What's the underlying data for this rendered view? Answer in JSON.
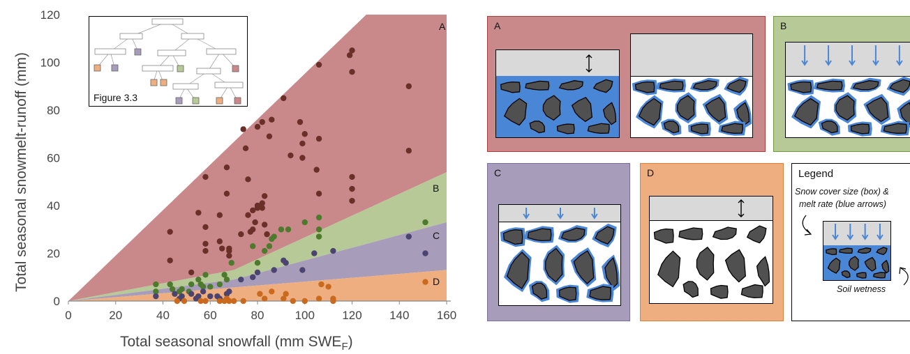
{
  "chart_data": {
    "type": "scatter",
    "xlabel": "Total seasonal snowfall (mm SWE",
    "xlabel_sub": "F",
    "ylabel": "Total seasonal snowmelt-runoff (mm)",
    "xlim": [
      0,
      160
    ],
    "ylim": [
      0,
      120
    ],
    "x_ticks": [
      0,
      20,
      40,
      60,
      80,
      100,
      120,
      140,
      160
    ],
    "y_ticks": [
      0,
      20,
      40,
      60,
      80,
      100,
      120
    ],
    "regions": [
      {
        "name": "A",
        "color": "#c9898a",
        "upper": [
          [
            0,
            0
          ],
          [
            126,
            120
          ],
          [
            160,
            120
          ]
        ],
        "lower": [
          [
            0,
            0
          ],
          [
            70,
            13
          ],
          [
            160,
            54
          ]
        ]
      },
      {
        "name": "B",
        "color": "#b7c996",
        "upper": [
          [
            0,
            0
          ],
          [
            70,
            13
          ],
          [
            160,
            54
          ]
        ],
        "lower": [
          [
            0,
            0
          ],
          [
            70,
            9
          ],
          [
            160,
            33
          ]
        ]
      },
      {
        "name": "C",
        "color": "#a79dba",
        "upper": [
          [
            0,
            0
          ],
          [
            70,
            9
          ],
          [
            160,
            33
          ]
        ],
        "lower": [
          [
            0,
            0
          ],
          [
            160,
            13
          ]
        ]
      },
      {
        "name": "D",
        "color": "#efae7f",
        "upper": [
          [
            0,
            0
          ],
          [
            160,
            13
          ]
        ],
        "lower": [
          [
            0,
            0
          ],
          [
            160,
            0
          ]
        ]
      }
    ],
    "series": [
      {
        "name": "A",
        "color": "#6b2f2a",
        "points": [
          [
            43,
            29
          ],
          [
            43,
            17
          ],
          [
            52,
            12
          ],
          [
            55,
            37
          ],
          [
            58,
            52
          ],
          [
            58,
            31
          ],
          [
            58,
            24
          ],
          [
            58,
            21
          ],
          [
            64,
            36
          ],
          [
            64,
            25
          ],
          [
            65,
            22
          ],
          [
            67,
            56
          ],
          [
            67,
            45
          ],
          [
            68,
            22
          ],
          [
            68,
            21
          ],
          [
            68,
            19
          ],
          [
            73,
            28
          ],
          [
            74,
            72
          ],
          [
            75,
            64
          ],
          [
            76,
            51
          ],
          [
            76,
            36
          ],
          [
            77,
            29
          ],
          [
            78,
            38
          ],
          [
            78,
            30
          ],
          [
            79,
            33
          ],
          [
            80,
            73
          ],
          [
            80,
            40
          ],
          [
            80,
            39
          ],
          [
            82,
            75
          ],
          [
            82,
            41
          ],
          [
            82,
            39
          ],
          [
            83,
            44
          ],
          [
            83,
            32
          ],
          [
            84,
            28
          ],
          [
            85,
            69
          ],
          [
            86,
            76
          ],
          [
            91,
            85
          ],
          [
            94,
            61
          ],
          [
            98,
            75
          ],
          [
            99,
            66
          ],
          [
            99,
            60
          ],
          [
            100,
            70
          ],
          [
            105,
            55
          ],
          [
            106,
            99
          ],
          [
            106,
            68
          ],
          [
            106,
            45
          ],
          [
            119,
            103
          ],
          [
            120,
            105
          ],
          [
            120,
            96
          ],
          [
            120,
            52
          ],
          [
            120,
            47
          ],
          [
            120,
            42
          ],
          [
            144,
            90
          ],
          [
            144,
            63
          ]
        ]
      },
      {
        "name": "B",
        "color": "#4e7a2e",
        "points": [
          [
            37,
            7
          ],
          [
            37,
            4
          ],
          [
            43,
            7
          ],
          [
            44,
            5
          ],
          [
            47,
            4
          ],
          [
            48,
            5
          ],
          [
            51,
            4
          ],
          [
            52,
            7
          ],
          [
            55,
            9
          ],
          [
            56,
            7
          ],
          [
            57,
            6
          ],
          [
            58,
            11
          ],
          [
            60,
            6
          ],
          [
            64,
            7
          ],
          [
            66,
            11
          ],
          [
            67,
            9
          ],
          [
            69,
            16
          ],
          [
            78,
            23
          ],
          [
            80,
            16
          ],
          [
            83,
            21
          ],
          [
            85,
            23
          ],
          [
            86,
            26
          ],
          [
            87,
            27
          ],
          [
            90,
            30
          ],
          [
            93,
            30
          ],
          [
            100,
            33
          ],
          [
            106,
            27
          ],
          [
            106,
            30
          ],
          [
            106,
            35
          ],
          [
            151,
            33
          ]
        ]
      },
      {
        "name": "C",
        "color": "#4c4470",
        "points": [
          [
            37,
            2
          ],
          [
            45,
            3
          ],
          [
            47,
            1
          ],
          [
            48,
            2
          ],
          [
            52,
            3
          ],
          [
            54,
            1
          ],
          [
            55,
            2
          ],
          [
            57,
            4
          ],
          [
            60,
            2
          ],
          [
            63,
            2
          ],
          [
            64,
            1
          ],
          [
            67,
            3
          ],
          [
            68,
            4
          ],
          [
            73,
            9
          ],
          [
            78,
            10
          ],
          [
            80,
            12
          ],
          [
            87,
            13
          ],
          [
            91,
            17
          ],
          [
            92,
            16
          ],
          [
            99,
            13
          ],
          [
            104,
            20
          ],
          [
            112,
            21
          ],
          [
            144,
            27
          ],
          [
            151,
            20
          ]
        ]
      },
      {
        "name": "D",
        "color": "#c96a1e",
        "points": [
          [
            46,
            0
          ],
          [
            49,
            0
          ],
          [
            56,
            0
          ],
          [
            58,
            0
          ],
          [
            64,
            0
          ],
          [
            66,
            0
          ],
          [
            67,
            1
          ],
          [
            68,
            0
          ],
          [
            70,
            0
          ],
          [
            74,
            0
          ],
          [
            81,
            3
          ],
          [
            83,
            1
          ],
          [
            86,
            4
          ],
          [
            91,
            1
          ],
          [
            92,
            3
          ],
          [
            95,
            0
          ],
          [
            100,
            0
          ],
          [
            106,
            1
          ],
          [
            107,
            7
          ],
          [
            110,
            6
          ],
          [
            112,
            1
          ],
          [
            112,
            0
          ],
          [
            151,
            8
          ]
        ]
      }
    ]
  },
  "inset": {
    "label": "Figure 3.3"
  },
  "panels": [
    {
      "id": "A",
      "label": "A"
    },
    {
      "id": "B",
      "label": "B"
    },
    {
      "id": "C",
      "label": "C"
    },
    {
      "id": "D",
      "label": "D"
    }
  ],
  "legend": {
    "title": "Legend",
    "note_top_line1": "Snow cover size (box) &",
    "note_top_line2": "melt rate (blue arrows)",
    "note_bottom": "Soil wetness"
  },
  "colors": {
    "water": "#4a86d6",
    "rock": "#505050",
    "arrow": "#4a86d6"
  }
}
